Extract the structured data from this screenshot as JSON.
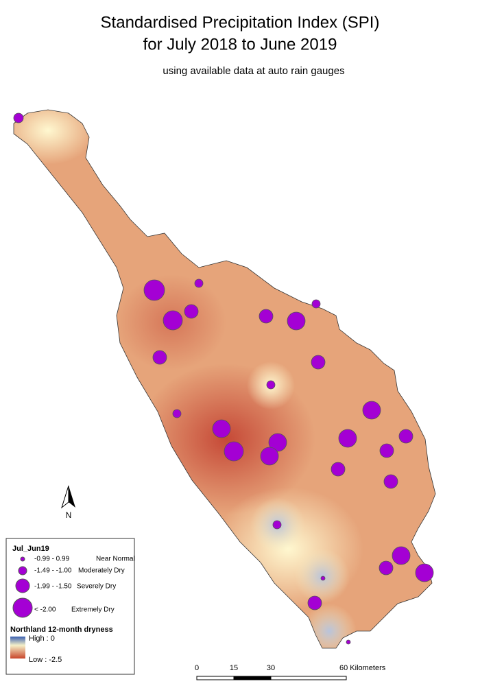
{
  "header": {
    "title_line1": "Standardised Precipitation Index (SPI)",
    "title_line2": "for July 2018 to June 2019",
    "subtitle": "using available data at auto rain gauges"
  },
  "legend": {
    "title": "Jul_Jun19",
    "classes": [
      {
        "range": "-0.99 - 0.99",
        "label": "Near Normal"
      },
      {
        "range": "-1.49 - -1.00",
        "label": "Moderately Dry"
      },
      {
        "range": "-1.99 - -1.50",
        "label": "Severely Dry"
      },
      {
        "range": "< -2.00",
        "label": "Extremely Dry"
      }
    ],
    "surface_title": "Northland 12-month dryness",
    "high": "High : 0",
    "low": "Low : -2.5"
  },
  "north_arrow": "N",
  "scale_bar": [
    "0",
    "15",
    "30",
    "60 Kilometers"
  ]
}
